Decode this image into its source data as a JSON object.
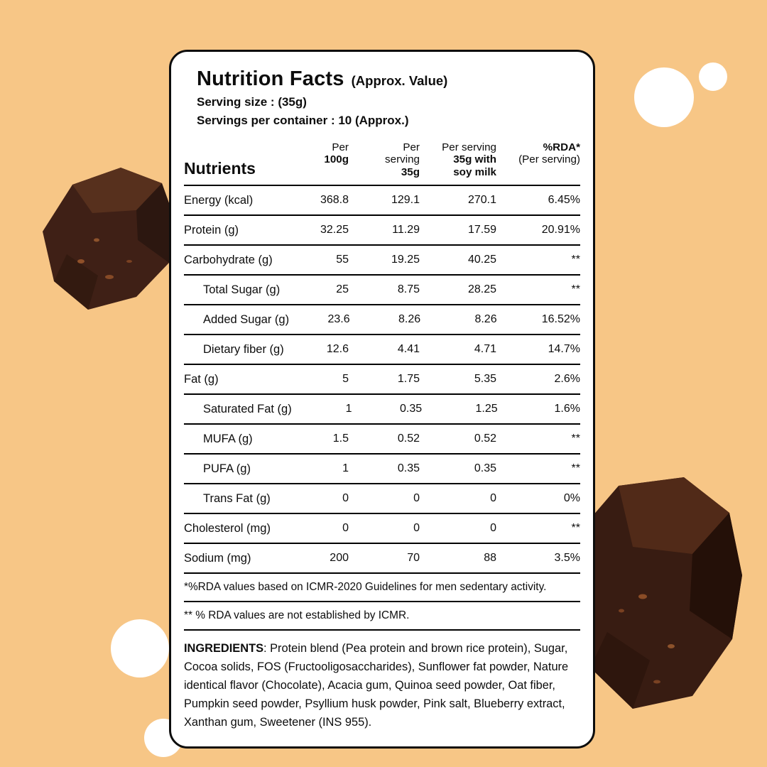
{
  "colors": {
    "background": "#F7C686",
    "card_background": "#FFFFFF",
    "card_border": "#0D0D0D",
    "chocolate_dark": "#3C1E15"
  },
  "card": {
    "title": "Nutrition Facts",
    "title_suffix": "(Approx. Value)",
    "serving_size": "Serving size :  (35g)",
    "servings_per_container": "Servings per container : 10 (Approx.)"
  },
  "table": {
    "nutrients_header": "Nutrients",
    "columns": [
      {
        "lines": [
          {
            "t": "Per",
            "b": false
          },
          {
            "t": "100g",
            "b": true
          }
        ]
      },
      {
        "lines": [
          {
            "t": "Per",
            "b": false
          },
          {
            "t": "serving",
            "b": false
          },
          {
            "t": "35g",
            "b": true
          }
        ]
      },
      {
        "lines": [
          {
            "t": "Per serving",
            "b": false
          },
          {
            "t": "35g with",
            "b": true
          },
          {
            "t": "soy milk",
            "b": true
          }
        ]
      },
      {
        "lines": [
          {
            "t": "%RDA*",
            "b": true
          },
          {
            "t": "(Per serving)",
            "b": false
          }
        ]
      }
    ],
    "rows": [
      {
        "label": "Energy (kcal)",
        "indent": false,
        "per100": "368.8",
        "per35": "129.1",
        "soy": "270.1",
        "rda": "6.45%"
      },
      {
        "label": "Protein (g)",
        "indent": false,
        "per100": "32.25",
        "per35": "11.29",
        "soy": "17.59",
        "rda": "20.91%"
      },
      {
        "label": "Carbohydrate (g)",
        "indent": false,
        "per100": "55",
        "per35": "19.25",
        "soy": "40.25",
        "rda": "**"
      },
      {
        "label": "Total Sugar (g)",
        "indent": true,
        "per100": "25",
        "per35": "8.75",
        "soy": "28.25",
        "rda": "**"
      },
      {
        "label": "Added Sugar (g)",
        "indent": true,
        "per100": "23.6",
        "per35": "8.26",
        "soy": "8.26",
        "rda": "16.52%"
      },
      {
        "label": "Dietary fiber (g)",
        "indent": true,
        "per100": "12.6",
        "per35": "4.41",
        "soy": "4.71",
        "rda": "14.7%"
      },
      {
        "label": "Fat (g)",
        "indent": false,
        "per100": "5",
        "per35": "1.75",
        "soy": "5.35",
        "rda": "2.6%"
      },
      {
        "label": "Saturated Fat (g)",
        "indent": true,
        "per100": "1",
        "per35": "0.35",
        "soy": "1.25",
        "rda": "1.6%"
      },
      {
        "label": "MUFA (g)",
        "indent": true,
        "per100": "1.5",
        "per35": "0.52",
        "soy": "0.52",
        "rda": "**"
      },
      {
        "label": "PUFA (g)",
        "indent": true,
        "per100": "1",
        "per35": "0.35",
        "soy": "0.35",
        "rda": "**"
      },
      {
        "label": "Trans Fat (g)",
        "indent": true,
        "per100": "0",
        "per35": "0",
        "soy": "0",
        "rda": "0%"
      },
      {
        "label": "Cholesterol (mg)",
        "indent": false,
        "per100": "0",
        "per35": "0",
        "soy": "0",
        "rda": "**"
      },
      {
        "label": "Sodium (mg)",
        "indent": false,
        "per100": "200",
        "per35": "70",
        "soy": "88",
        "rda": "3.5%"
      }
    ]
  },
  "footnotes": {
    "line1": "*%RDA values based on ICMR-2020 Guidelines for men sedentary activity.",
    "line2": "** % RDA values are not established by ICMR."
  },
  "ingredients": {
    "label": "INGREDIENTS",
    "separator": ": ",
    "text": "Protein blend (Pea protein and brown rice protein), Sugar, Cocoa solids, FOS (Fructooligosaccharides), Sunflower fat powder, Nature identical flavor (Chocolate), Acacia gum, Quinoa seed powder, Oat fiber, Pumpkin seed powder, Psyllium husk powder, Pink salt, Blueberry extract, Xanthan gum, Sweetener (INS 955)."
  }
}
